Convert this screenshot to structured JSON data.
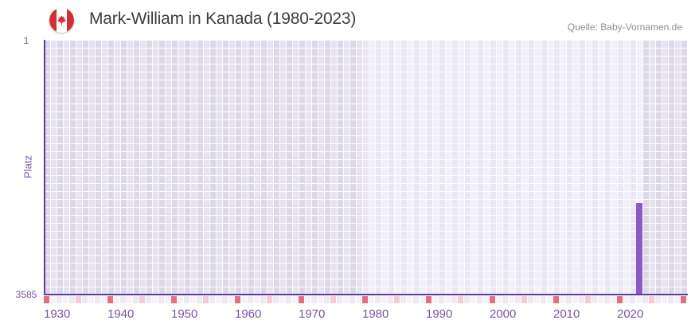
{
  "header": {
    "title": "Mark-William in Kanada (1980-2023)",
    "source": "Quelle: Baby-Vornamen.de",
    "flag_icon": "canada-flag-icon"
  },
  "chart_data": {
    "type": "bar",
    "title": "Mark-William in Kanada (1980-2023)",
    "ylabel": "Platz",
    "y_axis": {
      "top_label": "1",
      "bottom_label": "3585",
      "min": 1,
      "max": 3585,
      "inverted": true,
      "grid": true
    },
    "x_axis": {
      "start_year": 1930,
      "end_year": 2030,
      "decade_labels": [
        "1930",
        "1940",
        "1950",
        "1960",
        "1970",
        "1980",
        "1990",
        "2000",
        "2010",
        "2020"
      ],
      "decade_tick_color": "#e2707a",
      "half_decade_tick_color": "#f3ccd6"
    },
    "data_period": {
      "start": 1980,
      "end": 2023
    },
    "series": [
      {
        "name": "Mark-William",
        "points": [
          {
            "year": 2023,
            "rank": 2300
          }
        ]
      }
    ],
    "colors": {
      "bar": "#8b5bc5",
      "axis_line": "#5b3d99",
      "tick_text": "#7a54a6",
      "title_text": "#3e3e3e",
      "source_text": "#8f8f8f",
      "bg_outside_dark": "#ddd8e8",
      "bg_outside_dark_alt": "#e6e2ef",
      "bg_period_light": "#ebe8f4",
      "bg_period_light_alt": "#f2f0fa",
      "gridline": "#fcfbfe",
      "tickrow_even": "#edeaf5",
      "tickrow_odd": "#f5f2fa",
      "flag_red": "#d22f38"
    }
  }
}
